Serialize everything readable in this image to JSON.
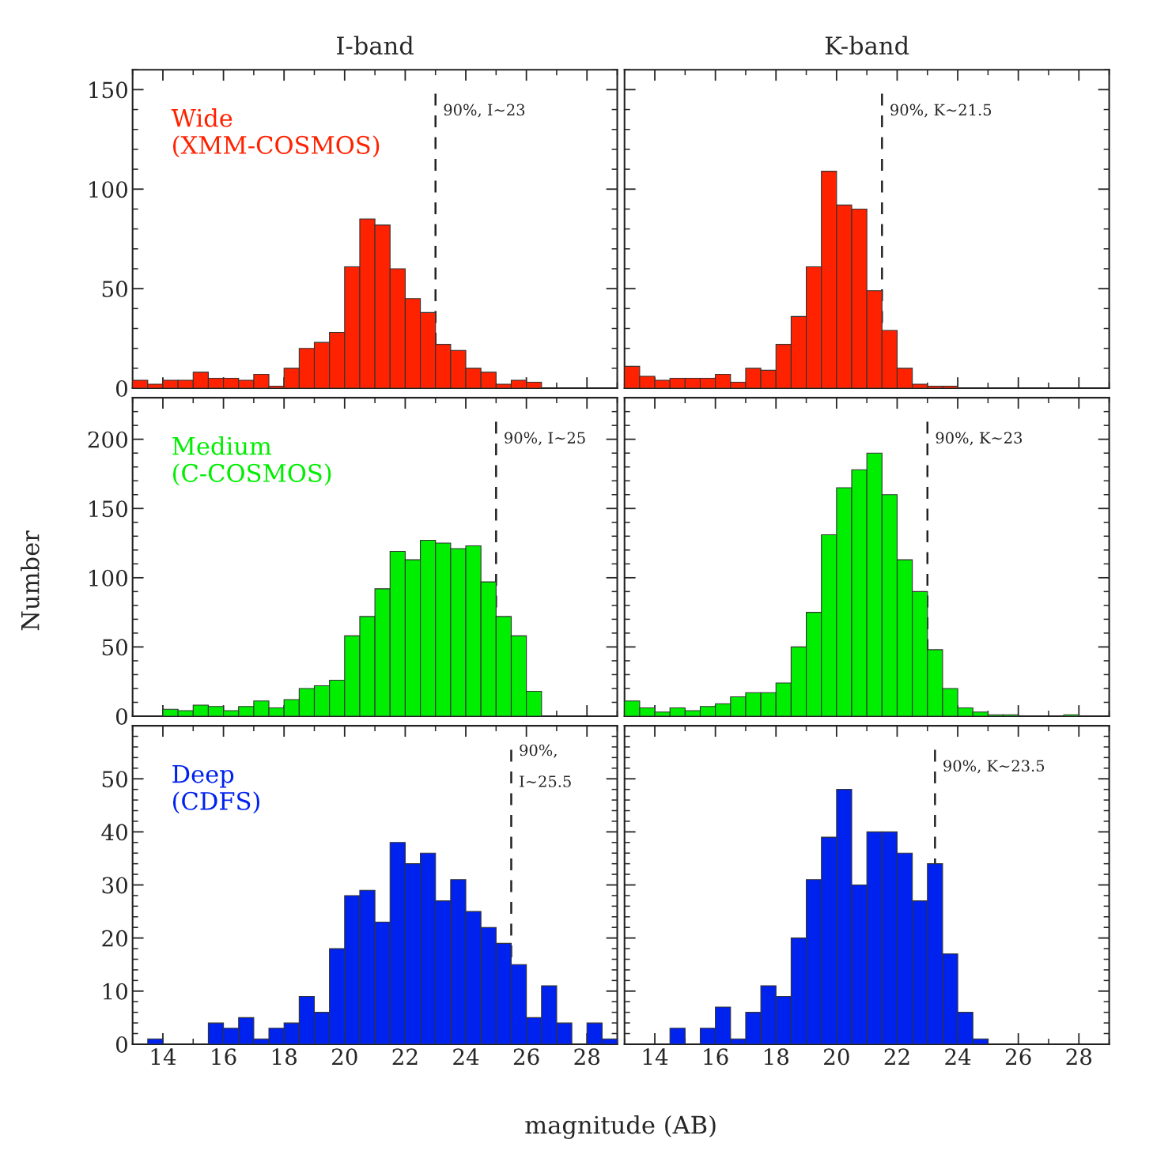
{
  "chart_data": [
    {
      "type": "histogram",
      "title": "I-band",
      "tick_labels": "y",
      "bins": [
        13,
        13.5,
        14,
        14.5,
        15,
        15.5,
        16,
        16.5,
        17,
        17.5,
        18,
        18.5,
        19,
        19.5,
        20,
        20.5,
        21,
        21.5,
        22,
        22.5,
        23,
        23.5,
        24,
        24.5,
        25,
        25.5,
        26,
        26.5,
        27,
        27.5,
        28,
        28.5,
        29
      ],
      "series": [
        {
          "name": "Wide\n(XMM-COSMOS)",
          "color": "#ff2200",
          "values": [
            4,
            2,
            4,
            4,
            8,
            5,
            5,
            4,
            7,
            1,
            10,
            20,
            23,
            28,
            61,
            85,
            82,
            60,
            45,
            38,
            22,
            19,
            10,
            8,
            2,
            4,
            3,
            0,
            0,
            0,
            0,
            0
          ]
        }
      ],
      "xlim": [
        13,
        29
      ],
      "xticks": [
        14,
        16,
        18,
        20,
        22,
        24,
        26,
        28
      ],
      "ylim": [
        0,
        160
      ],
      "yticks": [
        0,
        50,
        100,
        150
      ],
      "grid": false,
      "legend": "top left",
      "ref_lines": [
        {
          "axis": "x",
          "value": 23,
          "label": "90%, I~23",
          "line_style": "dashed"
        }
      ]
    },
    {
      "type": "histogram",
      "title": "K-band",
      "tick_labels": false,
      "bins": [
        13,
        13.5,
        14,
        14.5,
        15,
        15.5,
        16,
        16.5,
        17,
        17.5,
        18,
        18.5,
        19,
        19.5,
        20,
        20.5,
        21,
        21.5,
        22,
        22.5,
        23,
        23.5,
        24,
        24.5,
        25,
        25.5,
        26,
        26.5,
        27,
        27.5,
        28,
        28.5,
        29
      ],
      "series": [
        {
          "color": "#ff2200",
          "values": [
            11,
            6,
            4,
            5,
            5,
            5,
            7,
            3,
            10,
            9,
            22,
            36,
            61,
            109,
            92,
            90,
            49,
            29,
            10,
            2,
            1,
            1,
            0,
            0,
            0,
            0,
            0,
            0,
            0,
            0,
            0,
            0
          ]
        }
      ],
      "xlim": [
        13,
        29
      ],
      "xticks": [
        14,
        16,
        18,
        20,
        22,
        24,
        26,
        28
      ],
      "ylim": [
        0,
        160
      ],
      "yticks": [
        0,
        50,
        100,
        150
      ],
      "grid": false,
      "legend": false,
      "ref_lines": [
        {
          "axis": "x",
          "value": 21.5,
          "label": "90%, K~21.5",
          "line_style": "dashed"
        }
      ]
    },
    {
      "type": "histogram",
      "ylabel": "Number",
      "tick_labels": "y",
      "bins": [
        13,
        13.5,
        14,
        14.5,
        15,
        15.5,
        16,
        16.5,
        17,
        17.5,
        18,
        18.5,
        19,
        19.5,
        20,
        20.5,
        21,
        21.5,
        22,
        22.5,
        23,
        23.5,
        24,
        24.5,
        25,
        25.5,
        26,
        26.5,
        27,
        27.5,
        28,
        28.5,
        29
      ],
      "series": [
        {
          "name": "Medium\n(C-COSMOS)",
          "color": "#00ee00",
          "values": [
            0,
            0,
            5,
            4,
            8,
            7,
            4,
            7,
            11,
            6,
            12,
            20,
            22,
            26,
            58,
            72,
            92,
            119,
            113,
            127,
            125,
            121,
            123,
            97,
            72,
            58,
            18,
            0,
            0,
            0,
            0,
            0
          ]
        }
      ],
      "xlim": [
        13,
        29
      ],
      "xticks": [
        14,
        16,
        18,
        20,
        22,
        24,
        26,
        28
      ],
      "ylim": [
        0,
        230
      ],
      "yticks": [
        0,
        50,
        100,
        150,
        200
      ],
      "grid": false,
      "legend": "top left",
      "ref_lines": [
        {
          "axis": "x",
          "value": 25,
          "label": "90%, I~25",
          "line_style": "dashed"
        }
      ]
    },
    {
      "type": "histogram",
      "tick_labels": false,
      "bins": [
        13,
        13.5,
        14,
        14.5,
        15,
        15.5,
        16,
        16.5,
        17,
        17.5,
        18,
        18.5,
        19,
        19.5,
        20,
        20.5,
        21,
        21.5,
        22,
        22.5,
        23,
        23.5,
        24,
        24.5,
        25,
        25.5,
        26,
        26.5,
        27,
        27.5,
        28,
        28.5,
        29
      ],
      "series": [
        {
          "color": "#00ee00",
          "values": [
            11,
            6,
            3,
            6,
            4,
            7,
            9,
            14,
            17,
            17,
            24,
            50,
            75,
            131,
            165,
            178,
            190,
            160,
            113,
            90,
            48,
            20,
            6,
            3,
            1,
            1,
            0,
            0,
            0,
            1,
            0,
            0
          ]
        }
      ],
      "xlim": [
        13,
        29
      ],
      "xticks": [
        14,
        16,
        18,
        20,
        22,
        24,
        26,
        28
      ],
      "ylim": [
        0,
        230
      ],
      "yticks": [
        0,
        50,
        100,
        150,
        200
      ],
      "grid": false,
      "legend": false,
      "ref_lines": [
        {
          "axis": "x",
          "value": 23,
          "label": "90%, K~23",
          "line_style": "dashed"
        }
      ]
    },
    {
      "type": "histogram",
      "xlabel": "magnitude (AB)",
      "bins": [
        13,
        13.5,
        14,
        14.5,
        15,
        15.5,
        16,
        16.5,
        17,
        17.5,
        18,
        18.5,
        19,
        19.5,
        20,
        20.5,
        21,
        21.5,
        22,
        22.5,
        23,
        23.5,
        24,
        24.5,
        25,
        25.5,
        26,
        26.5,
        27,
        27.5,
        28,
        28.5,
        29
      ],
      "series": [
        {
          "name": "Deep\n(CDFS)",
          "color": "#0022ee",
          "values": [
            0,
            1,
            0,
            0,
            0,
            4,
            3,
            5,
            1,
            3,
            4,
            9,
            6,
            18,
            28,
            29,
            23,
            38,
            34,
            36,
            27,
            31,
            25,
            22,
            19,
            15,
            5,
            11,
            4,
            0,
            4,
            1
          ]
        }
      ],
      "xlim": [
        13,
        29
      ],
      "xticks": [
        14,
        16,
        18,
        20,
        22,
        24,
        26,
        28
      ],
      "ylim": [
        0,
        60
      ],
      "yticks": [
        0,
        10,
        20,
        30,
        40,
        50
      ],
      "grid": false,
      "legend": "top left",
      "ref_lines": [
        {
          "axis": "x",
          "value": 25.5,
          "label": "90%,\nI~25.5",
          "line_style": "dashed"
        }
      ]
    },
    {
      "type": "histogram",
      "tick_labels": "x",
      "bins": [
        13,
        13.5,
        14,
        14.5,
        15,
        15.5,
        16,
        16.5,
        17,
        17.5,
        18,
        18.5,
        19,
        19.5,
        20,
        20.5,
        21,
        21.5,
        22,
        22.5,
        23,
        23.5,
        24,
        24.5,
        25,
        25.5,
        26,
        26.5,
        27,
        27.5,
        28,
        28.5,
        29
      ],
      "series": [
        {
          "color": "#0022ee",
          "values": [
            0,
            0,
            0,
            3,
            0,
            3,
            7,
            1,
            6,
            11,
            9,
            20,
            31,
            39,
            48,
            30,
            40,
            40,
            36,
            27,
            34,
            17,
            6,
            1,
            0,
            0,
            0,
            0,
            0,
            0,
            0,
            0
          ]
        }
      ],
      "xlim": [
        13,
        29
      ],
      "xticks": [
        14,
        16,
        18,
        20,
        22,
        24,
        26,
        28
      ],
      "ylim": [
        0,
        60
      ],
      "yticks": [
        0,
        10,
        20,
        30,
        40,
        50
      ],
      "grid": false,
      "legend": false,
      "ref_lines": [
        {
          "axis": "x",
          "value": 23.25,
          "label": "90%, K~23.5",
          "line_style": "dashed"
        }
      ]
    }
  ]
}
